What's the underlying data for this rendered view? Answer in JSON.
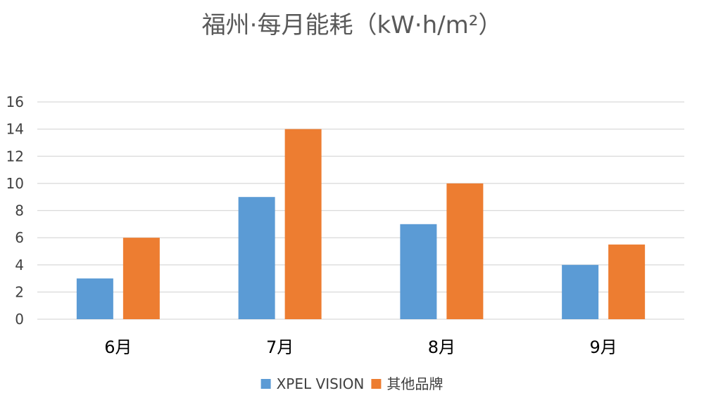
{
  "chart_data": {
    "type": "bar",
    "title": "福州·每月能耗（kW·h/m²）",
    "xlabel": "",
    "ylabel": "",
    "categories": [
      "6月",
      "7月",
      "8月",
      "9月"
    ],
    "series": [
      {
        "name": "XPEL VISION",
        "color": "#5b9bd5",
        "values": [
          3,
          9,
          7,
          4
        ]
      },
      {
        "name": "其他品牌",
        "color": "#ed7d31",
        "values": [
          6,
          14,
          10,
          5.5
        ]
      }
    ],
    "ylim": [
      0,
      16
    ],
    "yticks": [
      0,
      2,
      4,
      6,
      8,
      10,
      12,
      14,
      16
    ],
    "grid": true,
    "legend_position": "bottom"
  }
}
